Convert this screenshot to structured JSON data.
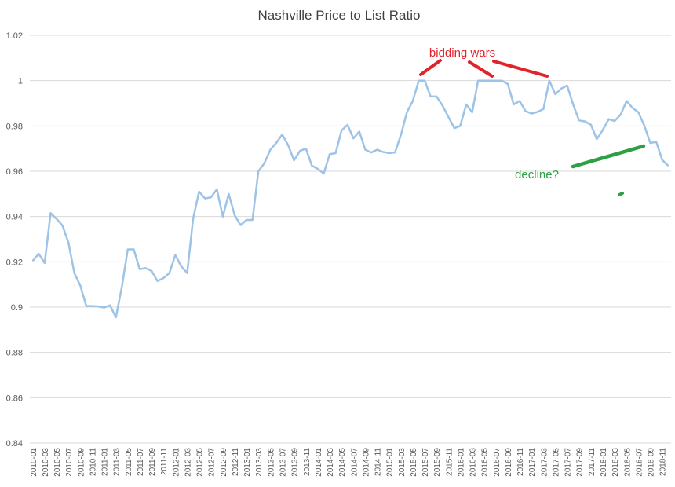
{
  "chart_data": {
    "type": "line",
    "title": "Nashville Price to List Ratio",
    "xlabel": "",
    "ylabel": "",
    "ylim": [
      0.84,
      1.02
    ],
    "y_ticks": [
      "0.84",
      "0.86",
      "0.88",
      "0.9",
      "0.92",
      "0.94",
      "0.96",
      "0.98",
      "1",
      "1.02"
    ],
    "grid": true,
    "legend": "none",
    "series_color": "#9dc3e6",
    "x_tick_labels": [
      "2010-01",
      "2010-03",
      "2010-05",
      "2010-07",
      "2010-09",
      "2010-11",
      "2011-01",
      "2011-03",
      "2011-05",
      "2011-07",
      "2011-09",
      "2011-11",
      "2012-01",
      "2012-03",
      "2012-05",
      "2012-07",
      "2012-09",
      "2012-11",
      "2013-01",
      "2013-03",
      "2013-05",
      "2013-07",
      "2013-09",
      "2013-11",
      "2014-01",
      "2014-03",
      "2014-05",
      "2014-07",
      "2014-09",
      "2014-11",
      "2015-01",
      "2015-03",
      "2015-05",
      "2015-07",
      "2015-09",
      "2015-11",
      "2016-01",
      "2016-03",
      "2016-05",
      "2016-07",
      "2016-09",
      "2016-11",
      "2017-01",
      "2017-03",
      "2017-05",
      "2017-07",
      "2017-09",
      "2017-11",
      "2018-01",
      "2018-03",
      "2018-05",
      "2018-07",
      "2018-09",
      "2018-11"
    ],
    "x": [
      "2010-01",
      "2010-02",
      "2010-03",
      "2010-04",
      "2010-05",
      "2010-06",
      "2010-07",
      "2010-08",
      "2010-09",
      "2010-10",
      "2010-11",
      "2010-12",
      "2011-01",
      "2011-02",
      "2011-03",
      "2011-04",
      "2011-05",
      "2011-06",
      "2011-07",
      "2011-08",
      "2011-09",
      "2011-10",
      "2011-11",
      "2011-12",
      "2012-01",
      "2012-02",
      "2012-03",
      "2012-04",
      "2012-05",
      "2012-06",
      "2012-07",
      "2012-08",
      "2012-09",
      "2012-10",
      "2012-11",
      "2012-12",
      "2013-01",
      "2013-02",
      "2013-03",
      "2013-04",
      "2013-05",
      "2013-06",
      "2013-07",
      "2013-08",
      "2013-09",
      "2013-10",
      "2013-11",
      "2013-12",
      "2014-01",
      "2014-02",
      "2014-03",
      "2014-04",
      "2014-05",
      "2014-06",
      "2014-07",
      "2014-08",
      "2014-09",
      "2014-10",
      "2014-11",
      "2014-12",
      "2015-01",
      "2015-02",
      "2015-03",
      "2015-04",
      "2015-05",
      "2015-06",
      "2015-07",
      "2015-08",
      "2015-09",
      "2015-10",
      "2015-11",
      "2015-12",
      "2016-01",
      "2016-02",
      "2016-03",
      "2016-04",
      "2016-05",
      "2016-06",
      "2016-07",
      "2016-08",
      "2016-09",
      "2016-10",
      "2016-11",
      "2016-12",
      "2017-01",
      "2017-02",
      "2017-03",
      "2017-04",
      "2017-05",
      "2017-06",
      "2017-07",
      "2017-08",
      "2017-09",
      "2017-10",
      "2017-11",
      "2017-12",
      "2018-01",
      "2018-02",
      "2018-03",
      "2018-04",
      "2018-05",
      "2018-06",
      "2018-07",
      "2018-08",
      "2018-09",
      "2018-10",
      "2018-11",
      "2018-12"
    ],
    "series": [
      {
        "values": [
          0.9205,
          0.9235,
          0.9195,
          0.9415,
          0.939,
          0.936,
          0.9285,
          0.915,
          0.9095,
          0.9005,
          0.9005,
          0.9003,
          0.8998,
          0.9008,
          0.8955,
          0.909,
          0.9255,
          0.9255,
          0.9168,
          0.9172,
          0.916,
          0.9115,
          0.9128,
          0.915,
          0.923,
          0.918,
          0.915,
          0.939,
          0.951,
          0.948,
          0.9485,
          0.952,
          0.94,
          0.95,
          0.9405,
          0.9362,
          0.9385,
          0.9385,
          0.96,
          0.9635,
          0.9695,
          0.9725,
          0.9762,
          0.9715,
          0.9648,
          0.969,
          0.97,
          0.9625,
          0.961,
          0.959,
          0.9675,
          0.968,
          0.978,
          0.9805,
          0.9745,
          0.9775,
          0.9695,
          0.9683,
          0.9695,
          0.9685,
          0.968,
          0.9683,
          0.976,
          0.986,
          0.991,
          1.0,
          1.0,
          0.993,
          0.993,
          0.989,
          0.984,
          0.979,
          0.98,
          0.9895,
          0.986,
          1.0,
          1.0,
          1.0,
          1.0,
          1.0,
          0.9985,
          0.9895,
          0.991,
          0.9865,
          0.9855,
          0.9862,
          0.9875,
          1.0,
          0.994,
          0.9965,
          0.9978,
          0.9895,
          0.9825,
          0.982,
          0.9805,
          0.9742,
          0.9782,
          0.983,
          0.9822,
          0.985,
          0.991,
          0.988,
          0.986,
          0.98,
          0.9725,
          0.973,
          0.965,
          0.9625
        ]
      }
    ],
    "annotations": [
      {
        "text": "bidding wars",
        "color": "#e0242b"
      },
      {
        "text": "decline?",
        "color": "#2ea043"
      }
    ]
  }
}
